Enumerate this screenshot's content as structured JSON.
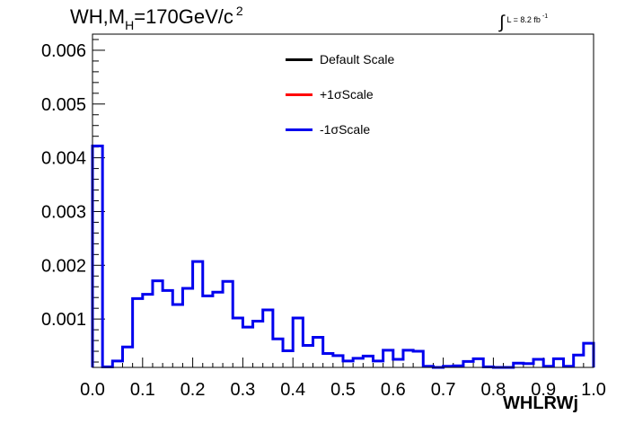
{
  "chart_data": {
    "type": "step-histogram",
    "title": {
      "main": "WH,M",
      "sub": "H",
      "rest": "=170GeV/c",
      "sup": "2"
    },
    "luminosity": {
      "integral": "∫",
      "text": "L = 8.2 fb",
      "sup": "-1"
    },
    "xlabel": "WHLRWj",
    "ylabel": "",
    "xlim": [
      0.0,
      1.0
    ],
    "ylim": [
      0.0001,
      0.0063
    ],
    "x_ticks": [
      "0.0",
      "0.1",
      "0.2",
      "0.3",
      "0.4",
      "0.5",
      "0.6",
      "0.7",
      "0.8",
      "0.9",
      "1.0"
    ],
    "x_tick_values": [
      0.0,
      0.1,
      0.2,
      0.3,
      0.4,
      0.5,
      0.6,
      0.7,
      0.8,
      0.9,
      1.0
    ],
    "y_ticks": [
      "0.001",
      "0.002",
      "0.003",
      "0.004",
      "0.005",
      "0.006"
    ],
    "y_tick_values": [
      0.001,
      0.002,
      0.003,
      0.004,
      0.005,
      0.006
    ],
    "bins": 50,
    "bin_range": [
      0.0,
      1.0
    ],
    "legend": [
      {
        "name": "Default Scale",
        "color": "#000000"
      },
      {
        "name": "+1σScale",
        "color": "#ff0000"
      },
      {
        "name": "-1σScale",
        "color": "#0000ee"
      }
    ],
    "series": [
      {
        "name": "-1σScale",
        "color": "#0000ee",
        "values": [
          0.00422,
          0.00011,
          0.00022,
          0.00048,
          0.00138,
          0.00146,
          0.00171,
          0.00153,
          0.00127,
          0.00157,
          0.00207,
          0.00143,
          0.0015,
          0.0017,
          0.00102,
          0.00085,
          0.00096,
          0.00117,
          0.00063,
          0.00041,
          0.00102,
          0.00051,
          0.00066,
          0.00036,
          0.00032,
          0.00022,
          0.00027,
          0.00031,
          0.00022,
          0.00042,
          0.00025,
          0.00042,
          0.0004,
          0.00012,
          0.0001,
          0.00012,
          0.00013,
          0.00021,
          0.00026,
          0.00011,
          0.0001,
          0.0001,
          0.00018,
          0.00017,
          0.00025,
          0.00012,
          0.00026,
          0.00012,
          0.00033,
          0.00055
        ]
      }
    ],
    "axis_color": "#000000",
    "background": "#ffffff"
  }
}
